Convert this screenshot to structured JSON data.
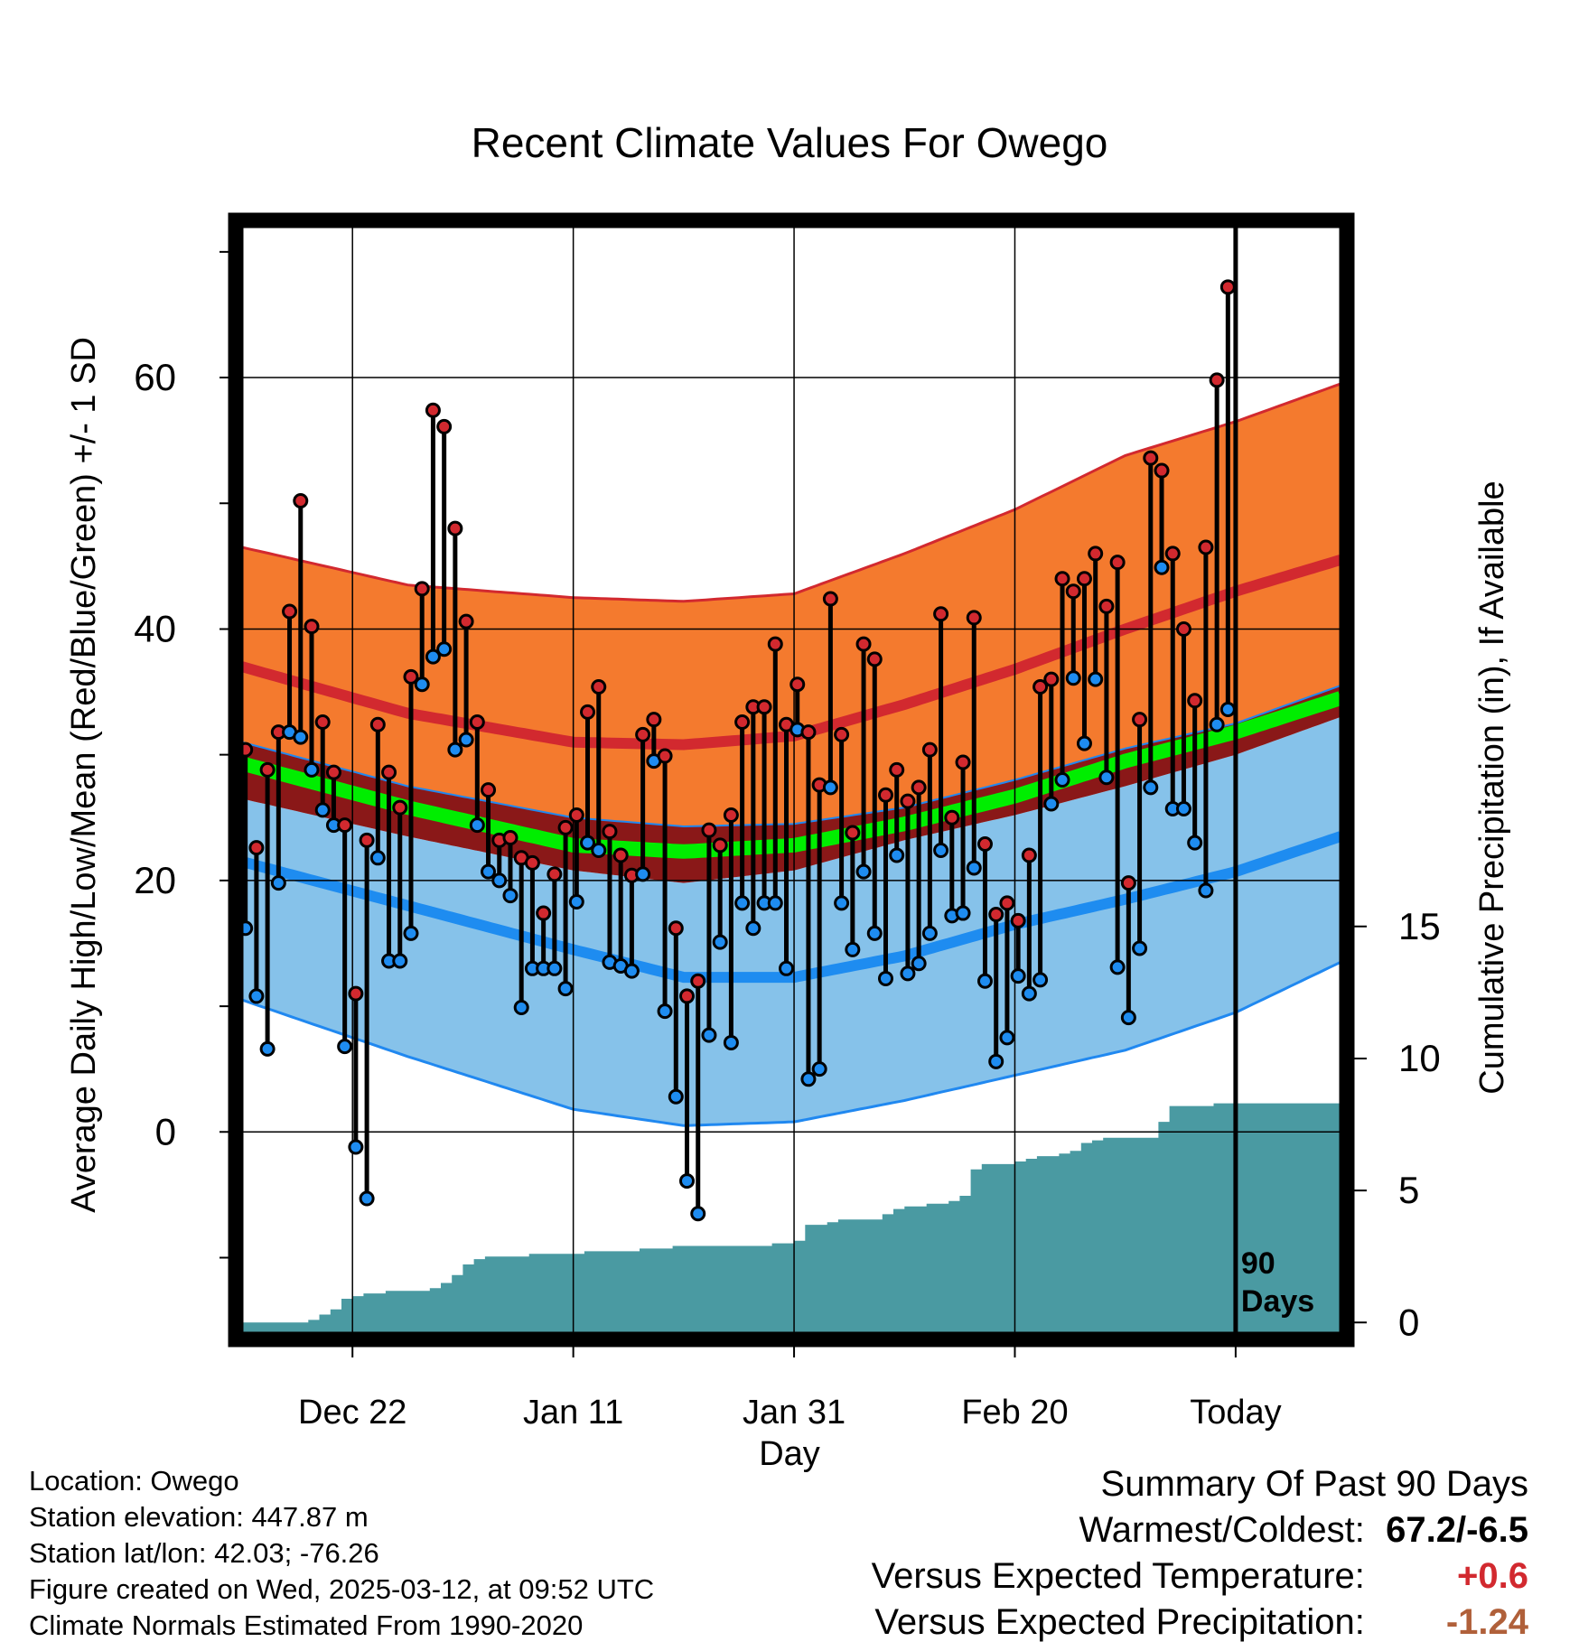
{
  "chart_data": {
    "type": "line",
    "title": "Recent Climate Values For Owego",
    "xlabel": "Day",
    "ylabel_left": "Average Daily High/Low/Mean (Red/Blue/Green) +/- 1 SD",
    "ylabel_right": "Cumulative Precipitation (in), If Available",
    "x_ticks": [
      {
        "day": 10,
        "label": "Dec 22"
      },
      {
        "day": 30,
        "label": "Jan 11"
      },
      {
        "day": 50,
        "label": "Jan 31"
      },
      {
        "day": 70,
        "label": "Feb 20"
      },
      {
        "day": 90,
        "label": "Today"
      }
    ],
    "xlim": [
      0,
      99.5
    ],
    "ylim_left": [
      -16,
      72
    ],
    "y_ticks_left": [
      0,
      20,
      40,
      60
    ],
    "y_ticks_right": [
      0,
      5,
      10,
      15
    ],
    "ylim_right": [
      -0.4,
      41.5
    ],
    "today_marker_label": "90 Days",
    "grid": true,
    "colors": {
      "high_band": "#f47a2e",
      "high_band_edge": "#d2292f",
      "normal_high": "#d2292f",
      "mean_band": "#8a1818",
      "normal_mean": "#00ee00",
      "low_band": "#86c2ea",
      "low_band_edge": "#2088f0",
      "normal_low": "#1e8cf0",
      "precip": "#4a9aa2",
      "high_point": "#d2292f",
      "low_point": "#1e8cf0"
    },
    "normals": {
      "days": [
        0,
        15,
        30,
        40,
        50,
        60,
        70,
        80,
        90,
        99.5
      ],
      "high_plus_sd": [
        46.5,
        43.5,
        42.5,
        42.2,
        42.8,
        46,
        49.5,
        53.8,
        56.5,
        59.5
      ],
      "normal_high": [
        37,
        33.3,
        31,
        30.8,
        31.5,
        34,
        36.8,
        40,
        43,
        45.5
      ],
      "high_minus_sd": [
        31,
        27.5,
        25,
        24.3,
        24.5,
        25.8,
        28,
        30.5,
        32.5,
        35.5
      ],
      "normal_mean": [
        29.3,
        25.8,
        22.8,
        22.3,
        22.8,
        24.5,
        26.7,
        29.5,
        31.8,
        34.5
      ],
      "low_plus_sd": [
        26.5,
        23.5,
        20.8,
        19.8,
        20.8,
        23.2,
        25.2,
        27.5,
        30,
        33
      ],
      "normal_low": [
        21.5,
        18,
        14.5,
        12.3,
        12.3,
        14,
        16.5,
        18.5,
        20.7,
        23.5
      ],
      "low_minus_sd": [
        10.5,
        6,
        1.8,
        0.5,
        0.8,
        2.5,
        4.5,
        6.5,
        9.5,
        13.5
      ]
    },
    "series": [
      {
        "name": "High",
        "values": [
          30.4,
          22.6,
          28.8,
          31.8,
          41.4,
          50.2,
          40.2,
          32.6,
          28.6,
          24.4,
          11,
          23.2,
          32.4,
          28.6,
          25.8,
          36.2,
          43.2,
          57.4,
          56.1,
          48,
          40.6,
          32.6,
          27.2,
          23.2,
          23.4,
          21.8,
          21.4,
          17.4,
          20.5,
          24.2,
          25.2,
          33.4,
          35.4,
          23.9,
          22,
          20.4,
          31.6,
          32.8,
          29.9,
          16.2,
          10.8,
          12,
          24,
          22.8,
          25.2,
          32.6,
          33.8,
          33.8,
          38.8,
          32.4,
          35.6,
          31.8,
          27.6,
          42.4,
          31.6,
          23.8,
          38.8,
          37.6,
          26.8,
          28.8,
          26.3,
          27.4,
          30.4,
          41.2,
          25,
          29.4,
          40.9,
          22.9,
          17.3,
          18.2,
          16.8,
          22,
          35.4,
          36,
          44,
          43,
          44,
          46,
          41.8,
          45.3,
          19.8,
          32.8,
          53.6,
          52.6,
          46,
          40,
          34.3,
          46.5,
          59.8,
          67.2
        ]
      },
      {
        "name": "Low",
        "values": [
          16.2,
          10.8,
          6.6,
          19.8,
          31.8,
          31.4,
          28.8,
          25.6,
          24.4,
          6.8,
          -1.2,
          -5.3,
          21.8,
          13.6,
          13.6,
          15.8,
          35.6,
          37.8,
          38.4,
          30.4,
          31.2,
          24.4,
          20.7,
          20,
          18.8,
          9.9,
          13,
          13,
          13,
          11.4,
          18.3,
          23,
          22.4,
          13.5,
          13.2,
          12.8,
          20.5,
          29.5,
          9.6,
          2.8,
          -3.9,
          -6.5,
          7.7,
          15.1,
          7.1,
          18.2,
          16.2,
          18.2,
          18.2,
          13,
          32,
          4.2,
          5,
          27.4,
          18.2,
          14.5,
          20.7,
          15.8,
          12.2,
          22,
          12.6,
          13.4,
          15.8,
          22.4,
          17.2,
          17.4,
          21,
          12,
          5.6,
          7.5,
          12.4,
          11,
          12.1,
          26.1,
          28,
          36.1,
          30.9,
          36,
          28.2,
          13.1,
          9.1,
          14.6,
          27.4,
          44.9,
          25.7,
          25.7,
          23,
          19.2,
          32.4,
          33.6
        ]
      },
      {
        "name": "Cumulative Precipitation",
        "values": [
          0,
          0,
          0,
          0,
          0,
          0,
          0.1,
          0.3,
          0.5,
          0.9,
          1.0,
          1.1,
          1.1,
          1.2,
          1.2,
          1.2,
          1.2,
          1.3,
          1.5,
          1.8,
          2.2,
          2.4,
          2.5,
          2.5,
          2.5,
          2.5,
          2.6,
          2.6,
          2.6,
          2.6,
          2.6,
          2.7,
          2.7,
          2.7,
          2.7,
          2.7,
          2.8,
          2.8,
          2.8,
          2.9,
          2.9,
          2.9,
          2.9,
          2.9,
          2.9,
          2.9,
          2.9,
          2.9,
          3.0,
          3.0,
          3.1,
          3.7,
          3.7,
          3.8,
          3.9,
          3.9,
          3.9,
          3.9,
          4.1,
          4.3,
          4.4,
          4.4,
          4.5,
          4.5,
          4.6,
          4.8,
          5.8,
          6.0,
          6.0,
          6.0,
          6.1,
          6.2,
          6.3,
          6.3,
          6.4,
          6.5,
          6.8,
          6.9,
          7.0,
          7.0,
          7.0,
          7.0,
          7.0,
          7.6,
          8.2,
          8.2,
          8.2,
          8.2,
          8.3,
          8.3,
          8.3,
          8.3,
          8.3,
          8.3,
          8.3,
          8.3,
          8.3,
          8.3,
          8.3,
          8.3
        ]
      }
    ]
  },
  "location": {
    "location_line": "Location: Owego",
    "elevation_line": "Station elevation: 447.87 m",
    "latlon_line": "Station lat/lon: 42.03; -76.26",
    "created_line": "Figure created on Wed, 2025-03-12, at 09:52 UTC",
    "normals_line": "Climate Normals Estimated From 1990-2020"
  },
  "summary": {
    "heading": "Summary Of Past 90 Days",
    "warmest_coldest_label": "Warmest/Coldest:",
    "warmest_coldest_value": "67.2/-6.5",
    "temp_label": "Versus Expected Temperature:",
    "temp_value": "+0.6",
    "temp_color": "#d2292f",
    "precip_label": "Versus Expected Precipitation:",
    "precip_value": "-1.24",
    "precip_color": "#b0603a"
  }
}
